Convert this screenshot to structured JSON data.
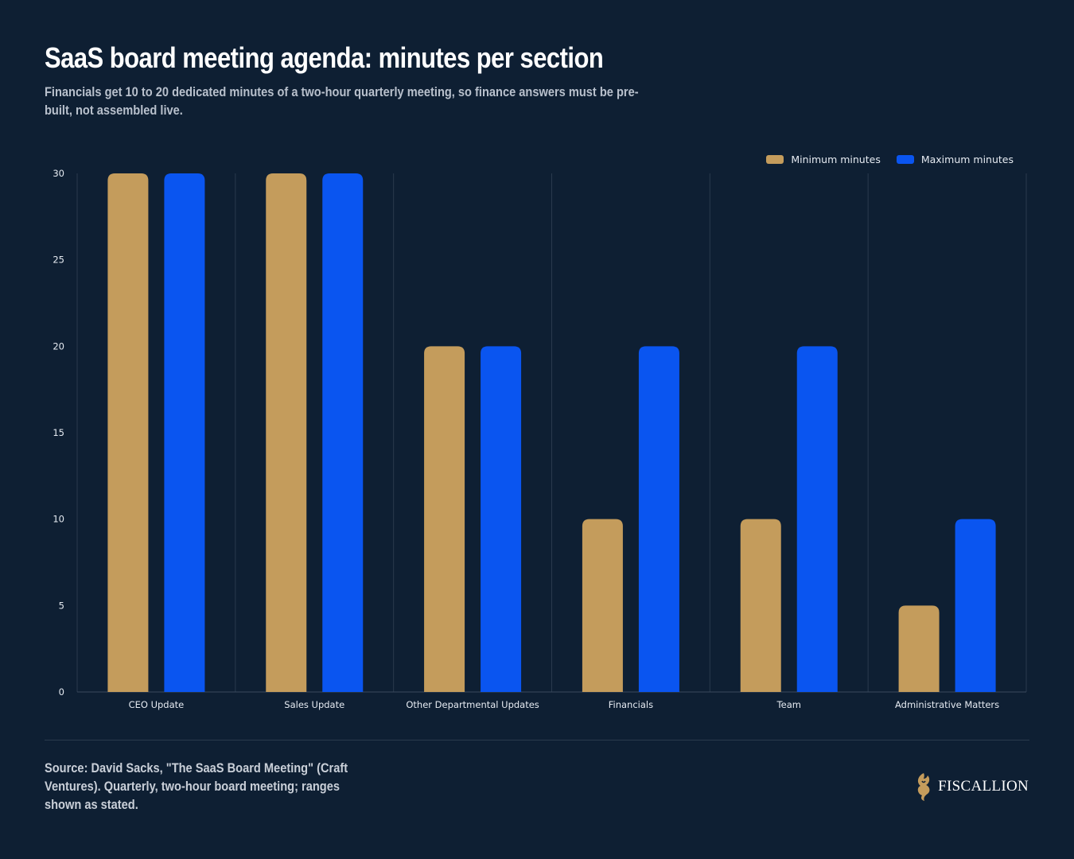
{
  "header": {
    "title": "SaaS board meeting agenda: minutes per section",
    "subtitle": "Financials get 10 to 20 dedicated minutes of a two-hour quarterly meeting, so finance answers must be pre-built, not assembled live."
  },
  "legend": {
    "min_label": "Minimum minutes",
    "max_label": "Maximum minutes"
  },
  "colors": {
    "background": "#0e1f33",
    "min": "#c49c5c",
    "max": "#0a55f0",
    "grid": "#2a3a4d",
    "axis_text": "#e6ebf2"
  },
  "chart_data": {
    "type": "bar",
    "categories": [
      "CEO Update",
      "Sales Update",
      "Other Departmental Updates",
      "Financials",
      "Team",
      "Administrative Matters"
    ],
    "series": [
      {
        "name": "Minimum minutes",
        "values": [
          30,
          30,
          20,
          10,
          10,
          5
        ]
      },
      {
        "name": "Maximum minutes",
        "values": [
          30,
          30,
          20,
          20,
          20,
          10
        ]
      }
    ],
    "ylim": [
      0,
      30
    ],
    "yticks": [
      0,
      5,
      10,
      15,
      20,
      25,
      30
    ],
    "grid": true,
    "legend_position": "top-right"
  },
  "footer": {
    "source": "Source: David Sacks, \"The SaaS Board Meeting\" (Craft Ventures). Quarterly, two-hour board meeting; ranges shown as stated.",
    "logo_text": "FISCALLION",
    "logo_icon": "lion-head-icon"
  }
}
